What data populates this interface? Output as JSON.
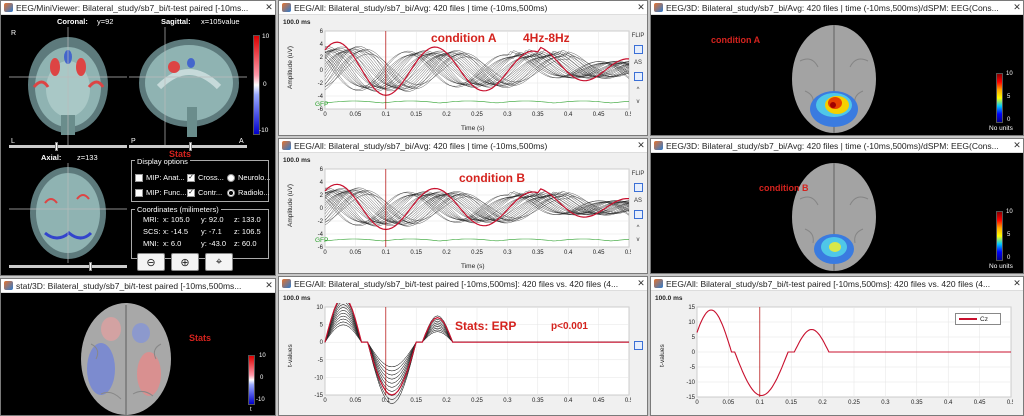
{
  "win_mv": {
    "title": "EEG/MiniViewer: Bilateral_study/sb7_bi/t-test paired [-10ms..."
  },
  "coronal": {
    "title": "Coronal:",
    "val": "y=92"
  },
  "sagittal": {
    "title": "Sagittal:",
    "val": "x=105value"
  },
  "axial": {
    "title": "Axial:",
    "val": "z=133"
  },
  "mv_cbar": {
    "top": "10",
    "zero": "0",
    "bot": "-10",
    "t": "t"
  },
  "stats_label": "Stats",
  "display_options": {
    "title": "Display options",
    "mip_anat": "MIP: Anat...",
    "crosshair": "Cross...",
    "neurolo": "Neurolo...",
    "mip_func": "MIP: Func...",
    "contour": "Contr...",
    "radiolo": "Radiolo..."
  },
  "coordinates": {
    "title": "Coordinates (milimeters)",
    "mri_label": "MRI:",
    "mri_x": "x: 105.0",
    "mri_y": "y: 92.0",
    "mri_z": "z: 133.0",
    "scs_label": "SCS:",
    "scs_x": "x: -14.5",
    "scs_y": "y: -7.1",
    "scs_z": "z: 106.5",
    "mni_label": "MNI:",
    "mni_x": "x: 6.0",
    "mni_y": "y: -43.0",
    "mni_z": "z: 60.0"
  },
  "stat3d": {
    "title": "stat/3D: Bilateral_study/sb7_bi/t-test paired [-10ms,500ms...",
    "label": "Stats",
    "cbar_top": "10",
    "cbar_zero": "0",
    "cbar_bot": "-10",
    "cbar_t": "t"
  },
  "erp_a": {
    "title": "EEG/All: Bilateral_study/sb7_bi/Avg: 420 files | time (-10ms,500ms)",
    "time": "100.0 ms",
    "ylabel": "Amplitude (uV)",
    "xlabel": "Time (s)",
    "cond": "condition A",
    "band": "4Hz-8Hz",
    "gfp": "GFP"
  },
  "erp_b": {
    "title": "EEG/All: Bilateral_study/sb7_bi/Avg: 420 files | time (-10ms,500ms)",
    "time": "100.0 ms",
    "ylabel": "Amplitude (uV)",
    "xlabel": "Time (s)",
    "cond": "condition B",
    "gfp": "GFP"
  },
  "ttest": {
    "title": "EEG/All: Bilateral_study/sb7_bi/t-test paired [-10ms,500ms]: 420 files vs. 420 files (4...",
    "time": "100.0 ms",
    "ylabel": "t-values",
    "xlabel": "Time (s)",
    "stats": "Stats: ERP",
    "p": "p<0.001"
  },
  "cz": {
    "title": "EEG/All: Bilateral_study/sb7_bi/t-test paired [-10ms,500ms]: 420 files vs. 420 files (4...",
    "time": "100.0 ms",
    "ylabel": "t-values",
    "legend": "Cz"
  },
  "brain_a": {
    "title": "EEG/3D: Bilateral_study/sb7_bi/Avg: 420 files | time (-10ms,500ms)/dSPM: EEG(Cons...",
    "cond": "condition A",
    "cbar_top": "10",
    "cbar_mid": "5",
    "cbar_bot": "0",
    "units": "No units"
  },
  "brain_b": {
    "title": "EEG/3D: Bilateral_study/sb7_bi/Avg: 420 files | time (-10ms,500ms)/dSPM: EEG(Cons...",
    "cond": "condition B",
    "cbar_top": "10",
    "cbar_mid": "5",
    "cbar_bot": "0",
    "units": "No units"
  },
  "side_labels": {
    "flip": "FLIP",
    "as": "AS",
    "up": "^",
    "down": "v"
  },
  "ticks_x": [
    "0",
    "0.05",
    "0.1",
    "0.15",
    "0.2",
    "0.25",
    "0.3",
    "0.35",
    "0.4",
    "0.45",
    "0.5"
  ],
  "ticks_y_erp": [
    "6",
    "4",
    "2",
    "0",
    "-2",
    "-4",
    "-6"
  ],
  "ticks_y_t": [
    "10",
    "5",
    "0",
    "-5",
    "-10",
    "-15"
  ],
  "ticks_y_cz": [
    "15",
    "10",
    "5",
    "0",
    "-5",
    "-10",
    "-15"
  ],
  "colors": {
    "curve": "#222222",
    "highlight": "#c8102e",
    "gfp": "#2ca02c",
    "cursor": "#b00000"
  }
}
